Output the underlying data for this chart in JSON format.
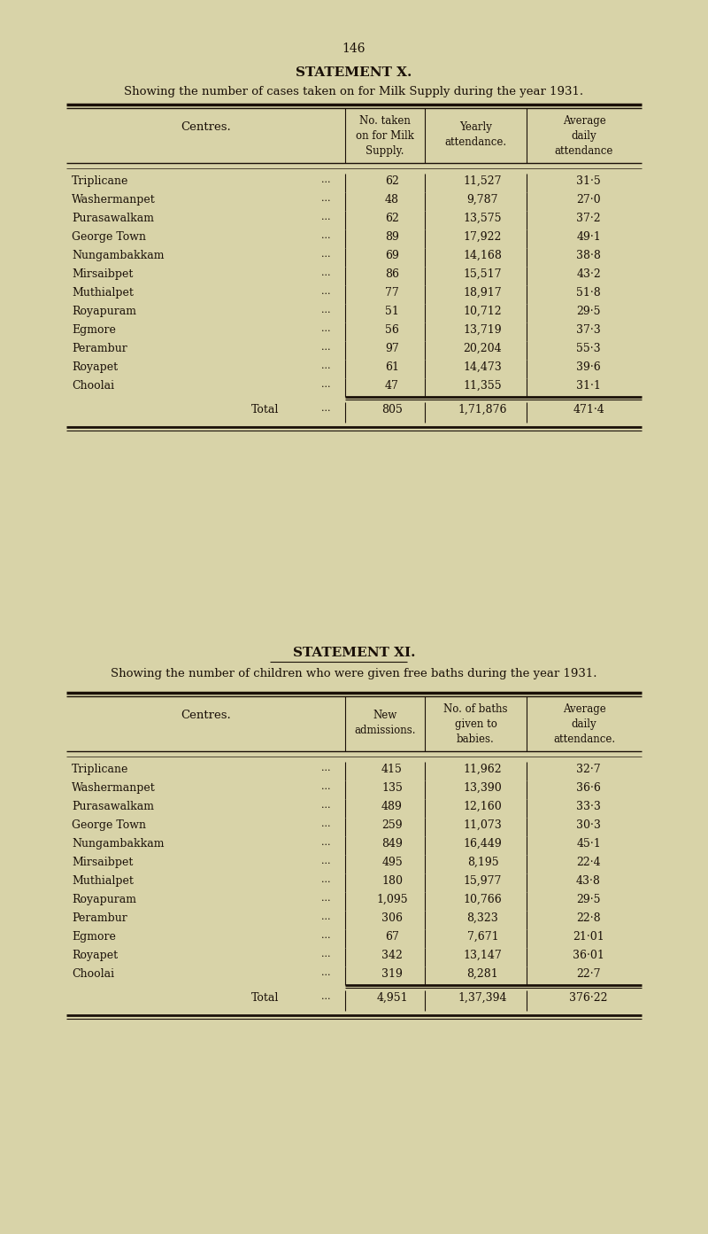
{
  "page_number": "146",
  "bg_color": "#d8d3a8",
  "text_color": "#1a1008",
  "stmt_x_title": "STATEMENT X.",
  "stmt_x_subtitle": "Showing the number of cases taken on for Milk Supply during the year 1931.",
  "stmt_x_rows": [
    [
      "Triplicane",
      "62",
      "11,527",
      "31·5"
    ],
    [
      "Washermanpet",
      "48",
      "9,787",
      "27·0"
    ],
    [
      "Purasawalkam",
      "62",
      "13,575",
      "37·2"
    ],
    [
      "George Town",
      "89",
      "17,922",
      "49·1"
    ],
    [
      "Nungambakkam",
      "69",
      "14,168",
      "38·8"
    ],
    [
      "Mirsaibpet",
      "86",
      "15,517",
      "43·2"
    ],
    [
      "Muthialpet",
      "77",
      "18,917",
      "51·8"
    ],
    [
      "Royapuram",
      "51",
      "10,712",
      "29·5"
    ],
    [
      "Egmore",
      "56",
      "13,719",
      "37·3"
    ],
    [
      "Perambur",
      "97",
      "20,204",
      "55·3"
    ],
    [
      "Royapet",
      "61",
      "14,473",
      "39·6"
    ],
    [
      "Choolai",
      "47",
      "11,355",
      "31·1"
    ]
  ],
  "stmt_x_total": [
    "Total",
    "805",
    "1,71,876",
    "471·4"
  ],
  "stmt_xi_title": "STATEMENT XI.",
  "stmt_xi_subtitle": "Showing the number of children who were given free baths during the year 1931.",
  "stmt_xi_rows": [
    [
      "Triplicane",
      "415",
      "11,962",
      "32·7"
    ],
    [
      "Washermanpet",
      "135",
      "13,390",
      "36·6"
    ],
    [
      "Purasawalkam",
      "489",
      "12,160",
      "33·3"
    ],
    [
      "George Town",
      "259",
      "11,073",
      "30·3"
    ],
    [
      "Nungambakkam",
      "849",
      "16,449",
      "45·1"
    ],
    [
      "Mirsaibpet",
      "495",
      "8,195",
      "22·4"
    ],
    [
      "Muthialpet",
      "180",
      "15,977",
      "43·8"
    ],
    [
      "Royapuram",
      "1,095",
      "10,766",
      "29·5"
    ],
    [
      "Perambur",
      "306",
      "8,323",
      "22·8"
    ],
    [
      "Egmore",
      "67",
      "7,671",
      "21·01"
    ],
    [
      "Royapet",
      "342",
      "13,147",
      "36·01"
    ],
    [
      "Choolai",
      "319",
      "8,281",
      "22·7"
    ]
  ],
  "stmt_xi_total": [
    "Total",
    "4,951",
    "1,37,394",
    "376·22"
  ]
}
